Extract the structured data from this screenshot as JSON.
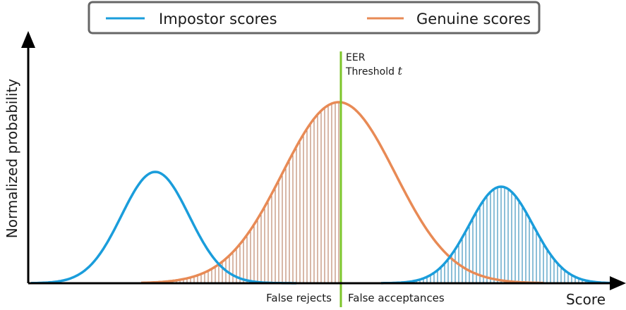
{
  "legend": {
    "impostor": "Impostor scores",
    "genuine": "Genuine scores"
  },
  "axes": {
    "x_label": "Score",
    "y_label": "Normalized probability"
  },
  "threshold": {
    "line1": "EER",
    "line2": "Threshold",
    "symbol": "t"
  },
  "regions": {
    "left": "False rejects",
    "right": "False acceptances"
  }
}
